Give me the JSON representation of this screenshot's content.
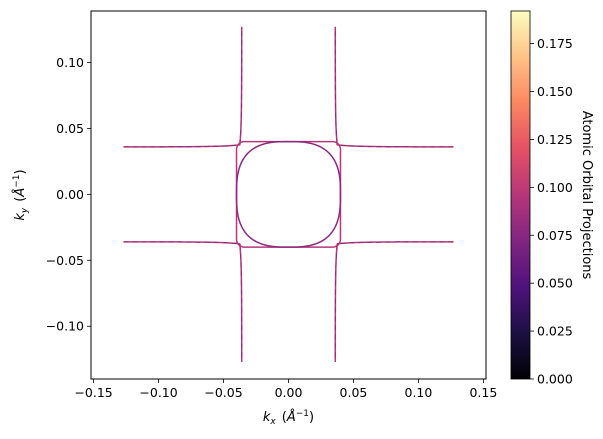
{
  "chart_data": {
    "type": "line",
    "title": "",
    "xlabel": "k_x  (Å⁻¹)",
    "ylabel": "k_y  (Å⁻¹)",
    "xlim": [
      -0.152,
      0.152
    ],
    "ylim": [
      -0.14,
      0.139
    ],
    "x_ticks": [
      -0.15,
      -0.1,
      -0.05,
      0.0,
      0.05,
      0.1,
      0.15
    ],
    "x_tick_labels": [
      "−0.15",
      "−0.10",
      "−0.05",
      "0.00",
      "0.05",
      "0.10",
      "0.15"
    ],
    "y_ticks": [
      0.1,
      0.05,
      0.0,
      -0.05,
      -0.1
    ],
    "y_tick_labels": [
      "0.10",
      "0.05",
      "0.00",
      "−0.05",
      "−0.10"
    ],
    "grid": false,
    "legend": "none",
    "line_colors": [
      "#b63679",
      "#8c2981"
    ],
    "series": [
      {
        "shape": "hyperbolic contours (four quadrant branches)",
        "color": "#b63679",
        "outer_extent": 0.127,
        "neck": 0.036,
        "saddle_offset": 0.0375
      },
      {
        "shape": "rounded square pocket",
        "color": "#b63679",
        "half_width": 0.04,
        "corner_radius": 0.006
      },
      {
        "shape": "rounded circular pocket",
        "color": "#8c2981",
        "half_width": 0.04,
        "superellipse_exponent": 2.8
      }
    ],
    "colorbar": {
      "label": "Atomic Orbital Projections",
      "colormap": "magma",
      "range": [
        0.0,
        0.192
      ],
      "ticks": [
        0.0,
        0.025,
        0.05,
        0.075,
        0.1,
        0.125,
        0.15,
        0.175
      ],
      "tick_labels": [
        "0.000",
        "0.025",
        "0.050",
        "0.075",
        "0.100",
        "0.125",
        "0.150",
        "0.175"
      ],
      "stops": [
        "#000004",
        "#1c1044",
        "#4f127b",
        "#812581",
        "#b5367a",
        "#e55064",
        "#fb8761",
        "#fec287",
        "#fcfdbf"
      ]
    }
  }
}
